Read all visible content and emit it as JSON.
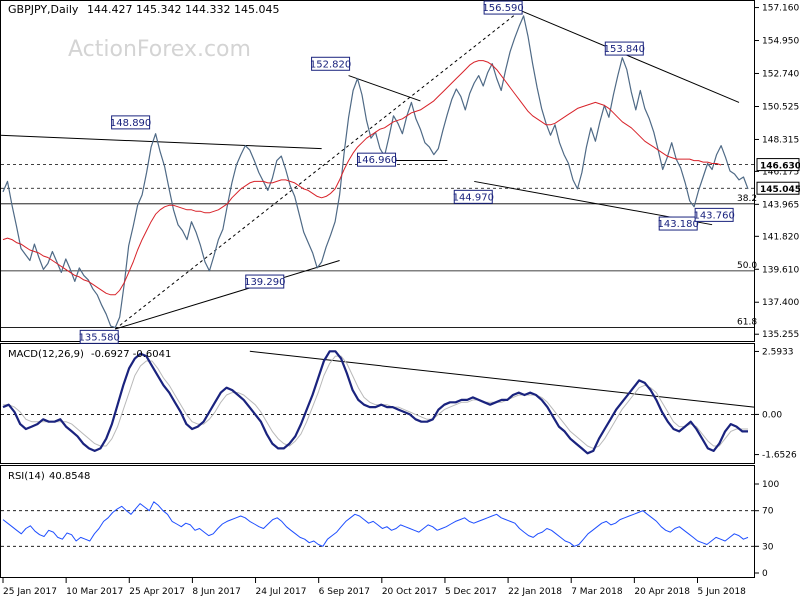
{
  "header": {
    "symbol_line": "GBPJPY,Daily",
    "ohlc": "144.427 145.342 144.332 145.045",
    "watermark": "ActionForex.com"
  },
  "colors": {
    "price": "#4f6a86",
    "ma": "#d8232a",
    "macd": "#1a237e",
    "signal": "#b9b9b9",
    "trendline": "#000000",
    "label_text": "#1a237e",
    "label_border": "#1a237e",
    "current_price_bg": "#ffffff"
  },
  "chart_data": [
    {
      "panel": "price",
      "type": "line",
      "title": "GBPJPY,Daily",
      "x_tick_labels": [
        "25 Jan 2017",
        "10 Mar 2017",
        "25 Apr 2017",
        "8 Jun 2017",
        "24 Jul 2017",
        "6 Sep 2017",
        "20 Oct 2017",
        "5 Dec 2017",
        "22 Jan 2018",
        "7 Mar 2018",
        "20 Apr 2018",
        "5 Jun 2018"
      ],
      "y_ticks": [
        135.255,
        137.4,
        139.61,
        141.82,
        143.965,
        146.175,
        148.315,
        150.525,
        152.74,
        154.95,
        157.16
      ],
      "y_tick_labels": [
        "135.255",
        "137.400",
        "139.610",
        "141.820",
        "143.965",
        "146.175",
        "148.315",
        "150.525",
        "152.740",
        "154.950",
        "157.160"
      ],
      "ylim": [
        134.8,
        157.6
      ],
      "series": [
        {
          "values": [
            144.8,
            145.5,
            143.9,
            142.5,
            141.0,
            140.6,
            140.2,
            141.3,
            140.4,
            139.6,
            140.0,
            140.8,
            140.1,
            139.4,
            140.3,
            139.6,
            138.8,
            139.7,
            139.2,
            138.9,
            138.3,
            137.9,
            137.2,
            136.6,
            135.8,
            135.7,
            136.4,
            138.6,
            141.2,
            142.5,
            143.9,
            144.6,
            146.1,
            147.8,
            148.7,
            147.5,
            146.5,
            145.0,
            143.6,
            142.6,
            142.2,
            141.6,
            142.8,
            142.1,
            141.2,
            140.1,
            139.5,
            140.5,
            141.6,
            142.3,
            143.9,
            145.4,
            146.6,
            147.3,
            147.9,
            147.6,
            146.9,
            146.1,
            145.5,
            144.9,
            145.7,
            146.9,
            147.2,
            146.3,
            145.2,
            144.5,
            143.3,
            142.1,
            141.4,
            140.7,
            139.7,
            140.1,
            141.1,
            141.9,
            142.8,
            144.6,
            147.4,
            149.8,
            151.6,
            152.4,
            151.3,
            149.6,
            148.4,
            148.8,
            147.7,
            147.2,
            148.5,
            149.9,
            149.4,
            148.7,
            149.9,
            150.8,
            149.7,
            149.0,
            148.1,
            147.8,
            147.3,
            147.7,
            148.9,
            150.0,
            151.0,
            151.7,
            151.2,
            150.3,
            151.4,
            152.1,
            152.6,
            151.9,
            152.8,
            153.4,
            152.4,
            151.6,
            153.0,
            154.2,
            155.1,
            155.9,
            156.6,
            155.2,
            153.4,
            151.8,
            150.4,
            149.4,
            148.6,
            149.3,
            148.1,
            147.3,
            146.7,
            145.6,
            145.0,
            146.1,
            147.8,
            149.1,
            148.2,
            149.5,
            150.6,
            149.8,
            151.3,
            152.6,
            153.8,
            153.0,
            151.5,
            150.3,
            151.6,
            150.4,
            149.7,
            148.8,
            147.6,
            146.3,
            147.1,
            148.1,
            147.0,
            146.4,
            145.4,
            144.2,
            143.8,
            144.9,
            145.8,
            146.7,
            146.3,
            147.3,
            147.9,
            147.1,
            146.2,
            146.0,
            145.6,
            145.8,
            145.0
          ]
        },
        {
          "name": "MA",
          "values": [
            141.6,
            141.7,
            141.6,
            141.4,
            141.3,
            141.1,
            140.9,
            140.8,
            140.7,
            140.5,
            140.4,
            140.2,
            140.0,
            139.8,
            139.6,
            139.4,
            139.2,
            139.1,
            138.9,
            138.8,
            138.6,
            138.4,
            138.2,
            138.0,
            137.9,
            137.9,
            138.2,
            138.7,
            139.4,
            140.1,
            140.9,
            141.6,
            142.2,
            142.8,
            143.3,
            143.6,
            143.8,
            143.9,
            143.9,
            143.8,
            143.7,
            143.6,
            143.6,
            143.5,
            143.5,
            143.4,
            143.4,
            143.5,
            143.6,
            143.8,
            144.0,
            144.4,
            144.7,
            145.0,
            145.2,
            145.4,
            145.5,
            145.5,
            145.5,
            145.4,
            145.4,
            145.5,
            145.6,
            145.6,
            145.5,
            145.4,
            145.2,
            145.0,
            144.9,
            144.7,
            144.5,
            144.4,
            144.5,
            144.7,
            145.0,
            145.6,
            146.3,
            146.9,
            147.4,
            147.8,
            148.1,
            148.4,
            148.6,
            148.8,
            149.0,
            149.1,
            149.3,
            149.5,
            149.6,
            149.7,
            149.9,
            150.1,
            150.2,
            150.3,
            150.5,
            150.7,
            150.9,
            151.2,
            151.5,
            151.8,
            152.1,
            152.4,
            152.7,
            153.0,
            153.3,
            153.5,
            153.6,
            153.6,
            153.5,
            153.3,
            153.0,
            152.6,
            152.2,
            151.8,
            151.4,
            151.0,
            150.6,
            150.2,
            149.9,
            149.7,
            149.5,
            149.3,
            149.3,
            149.4,
            149.6,
            149.8,
            150.0,
            150.2,
            150.4,
            150.5,
            150.6,
            150.7,
            150.8,
            150.7,
            150.6,
            150.4,
            150.1,
            149.8,
            149.5,
            149.3,
            149.1,
            148.8,
            148.5,
            148.2,
            148.0,
            147.8,
            147.6,
            147.4,
            147.2,
            147.1,
            147.0,
            147.0,
            147.0,
            147.0,
            146.9,
            146.9,
            146.8,
            146.8,
            146.7,
            146.7,
            146.6
          ]
        }
      ],
      "annotations": [
        {
          "label": "148.890",
          "kind": "peak"
        },
        {
          "label": "135.580",
          "kind": "trough"
        },
        {
          "label": "152.820",
          "kind": "peak"
        },
        {
          "label": "139.290",
          "kind": "trough"
        },
        {
          "label": "146.960",
          "kind": "level"
        },
        {
          "label": "156.590",
          "kind": "peak"
        },
        {
          "label": "144.970",
          "kind": "trough"
        },
        {
          "label": "153.840",
          "kind": "peak"
        },
        {
          "label": "143.180",
          "kind": "trough"
        },
        {
          "label": "143.760",
          "kind": "trough"
        }
      ],
      "fib_labels": [
        "50.0",
        "61.8",
        "38.2"
      ],
      "price_tags": [
        "146.630",
        "145.045"
      ]
    },
    {
      "panel": "macd",
      "type": "line",
      "title": "MACD(12,26,9)",
      "readout": "-0.6927 -0.6041",
      "y_tick_labels": [
        "2.5933",
        "0.00",
        "-1.6526"
      ],
      "ylim": [
        -2.0,
        2.9
      ],
      "series": [
        {
          "name": "MACD",
          "values": [
            0.3,
            0.4,
            0.1,
            -0.4,
            -0.6,
            -0.5,
            -0.4,
            -0.2,
            -0.3,
            -0.3,
            -0.2,
            -0.5,
            -0.7,
            -0.9,
            -1.2,
            -1.4,
            -1.5,
            -1.4,
            -1.0,
            -0.4,
            0.4,
            1.2,
            1.9,
            2.3,
            2.5,
            2.4,
            2.0,
            1.6,
            1.2,
            0.9,
            0.5,
            0.1,
            -0.4,
            -0.6,
            -0.5,
            -0.3,
            0.1,
            0.5,
            0.9,
            1.1,
            1.0,
            0.8,
            0.6,
            0.3,
            0.0,
            -0.3,
            -0.8,
            -1.2,
            -1.4,
            -1.4,
            -1.2,
            -0.9,
            -0.4,
            0.2,
            0.8,
            1.5,
            2.2,
            2.6,
            2.6,
            2.3,
            1.7,
            1.0,
            0.6,
            0.4,
            0.3,
            0.3,
            0.4,
            0.3,
            0.3,
            0.2,
            0.1,
            0.0,
            -0.2,
            -0.3,
            -0.3,
            -0.2,
            0.2,
            0.4,
            0.5,
            0.5,
            0.6,
            0.6,
            0.7,
            0.6,
            0.5,
            0.4,
            0.5,
            0.6,
            0.6,
            0.8,
            0.9,
            0.8,
            0.9,
            0.8,
            0.6,
            0.3,
            -0.1,
            -0.5,
            -0.7,
            -1.0,
            -1.2,
            -1.4,
            -1.6,
            -1.5,
            -1.0,
            -0.6,
            -0.2,
            0.2,
            0.5,
            0.8,
            1.1,
            1.4,
            1.3,
            1.0,
            0.6,
            0.1,
            -0.3,
            -0.6,
            -0.7,
            -0.5,
            -0.3,
            -0.6,
            -1.0,
            -1.4,
            -1.5,
            -1.2,
            -0.7,
            -0.4,
            -0.5,
            -0.7,
            -0.7
          ]
        },
        {
          "name": "Signal",
          "values": [
            0.4,
            0.4,
            0.3,
            0.1,
            -0.2,
            -0.3,
            -0.3,
            -0.3,
            -0.3,
            -0.3,
            -0.3,
            -0.3,
            -0.4,
            -0.6,
            -0.8,
            -1.0,
            -1.2,
            -1.3,
            -1.3,
            -1.0,
            -0.5,
            0.2,
            0.9,
            1.6,
            2.0,
            2.2,
            2.2,
            1.9,
            1.5,
            1.2,
            0.8,
            0.4,
            0.0,
            -0.3,
            -0.4,
            -0.4,
            -0.2,
            0.1,
            0.5,
            0.8,
            0.9,
            0.9,
            0.8,
            0.6,
            0.4,
            0.1,
            -0.3,
            -0.7,
            -1.0,
            -1.2,
            -1.3,
            -1.1,
            -0.8,
            -0.3,
            0.3,
            0.9,
            1.6,
            2.1,
            2.4,
            2.4,
            2.1,
            1.6,
            1.1,
            0.7,
            0.5,
            0.4,
            0.4,
            0.4,
            0.3,
            0.3,
            0.2,
            0.1,
            0.0,
            -0.1,
            -0.2,
            -0.2,
            0.0,
            0.2,
            0.3,
            0.4,
            0.5,
            0.5,
            0.6,
            0.6,
            0.5,
            0.5,
            0.5,
            0.5,
            0.6,
            0.7,
            0.8,
            0.8,
            0.8,
            0.8,
            0.7,
            0.5,
            0.2,
            -0.1,
            -0.4,
            -0.7,
            -0.9,
            -1.1,
            -1.3,
            -1.4,
            -1.3,
            -1.0,
            -0.6,
            -0.2,
            0.2,
            0.5,
            0.8,
            1.1,
            1.2,
            1.1,
            0.9,
            0.5,
            0.1,
            -0.3,
            -0.5,
            -0.5,
            -0.4,
            -0.5,
            -0.8,
            -1.1,
            -1.3,
            -1.3,
            -1.0,
            -0.7,
            -0.6,
            -0.6,
            -0.6
          ]
        }
      ]
    },
    {
      "panel": "rsi",
      "type": "line",
      "title": "RSI(14)",
      "readout": "40.8548",
      "y_tick_labels": [
        "100",
        "70",
        "30",
        "0"
      ],
      "ylim": [
        0,
        100
      ],
      "series": [
        {
          "values": [
            60,
            56,
            52,
            48,
            44,
            50,
            53,
            47,
            43,
            41,
            48,
            46,
            40,
            38,
            45,
            43,
            36,
            40,
            38,
            36,
            44,
            50,
            58,
            62,
            68,
            72,
            75,
            70,
            66,
            72,
            78,
            74,
            70,
            80,
            76,
            70,
            66,
            58,
            55,
            52,
            56,
            54,
            48,
            50,
            46,
            42,
            44,
            50,
            55,
            58,
            60,
            62,
            64,
            62,
            58,
            55,
            52,
            50,
            55,
            60,
            62,
            58,
            52,
            48,
            44,
            40,
            38,
            34,
            36,
            32,
            30,
            38,
            42,
            46,
            52,
            58,
            62,
            66,
            64,
            60,
            56,
            58,
            54,
            50,
            52,
            48,
            50,
            54,
            52,
            50,
            48,
            46,
            50,
            54,
            52,
            48,
            50,
            52,
            55,
            58,
            60,
            62,
            58,
            56,
            58,
            60,
            62,
            64,
            66,
            62,
            60,
            58,
            56,
            50,
            46,
            42,
            40,
            44,
            46,
            50,
            48,
            44,
            40,
            36,
            34,
            30,
            32,
            38,
            44,
            48,
            52,
            56,
            58,
            54,
            56,
            60,
            62,
            64,
            66,
            68,
            70,
            66,
            62,
            58,
            52,
            48,
            46,
            50,
            52,
            48,
            44,
            40,
            36,
            34,
            32,
            36,
            40,
            38,
            36,
            40,
            44,
            42,
            38,
            40
          ]
        }
      ]
    }
  ]
}
